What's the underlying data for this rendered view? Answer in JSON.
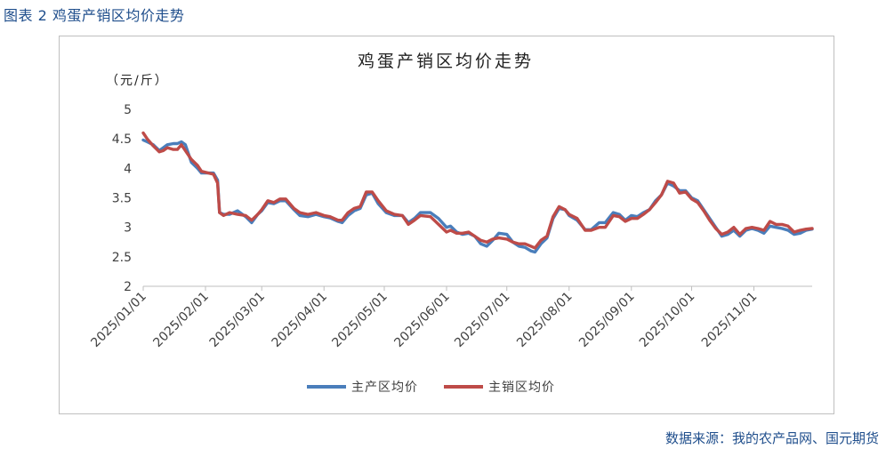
{
  "figure_label": "图表 2  鸡蛋产销区均价走势",
  "source_note": "数据来源：我的农产品网、国元期货",
  "colors": {
    "series_main_producing": "#4a7ebb",
    "series_main_selling": "#be4b48",
    "axis": "#bfbfbf",
    "text": "#404040",
    "header": "#1f4e8c"
  },
  "chart_data": {
    "type": "line",
    "title": "鸡蛋产销区均价走势",
    "ylabel": "（元/斤）",
    "xlabel": "",
    "ylim": [
      2,
      5
    ],
    "yticks": [
      {
        "value": 2,
        "label": "2"
      },
      {
        "value": 2.5,
        "label": "2.5"
      },
      {
        "value": 3,
        "label": "3"
      },
      {
        "value": 3.5,
        "label": "3.5"
      },
      {
        "value": 4,
        "label": "4"
      },
      {
        "value": 4.5,
        "label": "4.5"
      },
      {
        "value": 5,
        "label": "5"
      }
    ],
    "xrange": [
      "2025-01-01",
      "2025-11-30"
    ],
    "xticks": [
      "2025/01/01",
      "2025/02/01",
      "2025/03/01",
      "2025/04/01",
      "2025/05/01",
      "2025/06/01",
      "2025/07/01",
      "2025/08/01",
      "2025/09/01",
      "2025/10/01",
      "2025/11/01"
    ],
    "grid": false,
    "legend": "bottom",
    "series": [
      {
        "name": "主产区均价",
        "points": [
          [
            "2025-01-01",
            4.48
          ],
          [
            "2025-01-03",
            4.45
          ],
          [
            "2025-01-06",
            4.4
          ],
          [
            "2025-01-09",
            4.3
          ],
          [
            "2025-01-11",
            4.35
          ],
          [
            "2025-01-13",
            4.4
          ],
          [
            "2025-01-16",
            4.42
          ],
          [
            "2025-01-18",
            4.42
          ],
          [
            "2025-01-20",
            4.45
          ],
          [
            "2025-01-22",
            4.4
          ],
          [
            "2025-01-25",
            4.1
          ],
          [
            "2025-01-28",
            4.0
          ],
          [
            "2025-01-30",
            3.92
          ],
          [
            "2025-02-05",
            3.92
          ],
          [
            "2025-02-07",
            3.8
          ],
          [
            "2025-02-08",
            3.25
          ],
          [
            "2025-02-10",
            3.22
          ],
          [
            "2025-02-13",
            3.22
          ],
          [
            "2025-02-17",
            3.28
          ],
          [
            "2025-02-21",
            3.18
          ],
          [
            "2025-02-24",
            3.08
          ],
          [
            "2025-02-27",
            3.22
          ],
          [
            "2025-03-01",
            3.28
          ],
          [
            "2025-03-04",
            3.42
          ],
          [
            "2025-03-07",
            3.4
          ],
          [
            "2025-03-10",
            3.45
          ],
          [
            "2025-03-13",
            3.45
          ],
          [
            "2025-03-17",
            3.3
          ],
          [
            "2025-03-20",
            3.2
          ],
          [
            "2025-03-24",
            3.18
          ],
          [
            "2025-03-28",
            3.22
          ],
          [
            "2025-04-01",
            3.18
          ],
          [
            "2025-04-04",
            3.16
          ],
          [
            "2025-04-08",
            3.1
          ],
          [
            "2025-04-10",
            3.08
          ],
          [
            "2025-04-13",
            3.2
          ],
          [
            "2025-04-16",
            3.28
          ],
          [
            "2025-04-19",
            3.32
          ],
          [
            "2025-04-22",
            3.55
          ],
          [
            "2025-04-25",
            3.58
          ],
          [
            "2025-04-28",
            3.4
          ],
          [
            "2025-05-02",
            3.25
          ],
          [
            "2025-05-06",
            3.2
          ],
          [
            "2025-05-10",
            3.2
          ],
          [
            "2025-05-13",
            3.08
          ],
          [
            "2025-05-16",
            3.15
          ],
          [
            "2025-05-19",
            3.25
          ],
          [
            "2025-05-24",
            3.25
          ],
          [
            "2025-05-28",
            3.15
          ],
          [
            "2025-06-01",
            3.0
          ],
          [
            "2025-06-03",
            3.02
          ],
          [
            "2025-06-06",
            2.92
          ],
          [
            "2025-06-09",
            2.88
          ],
          [
            "2025-06-12",
            2.9
          ],
          [
            "2025-06-15",
            2.85
          ],
          [
            "2025-06-18",
            2.72
          ],
          [
            "2025-06-21",
            2.68
          ],
          [
            "2025-06-24",
            2.78
          ],
          [
            "2025-06-27",
            2.9
          ],
          [
            "2025-07-01",
            2.88
          ],
          [
            "2025-07-04",
            2.75
          ],
          [
            "2025-07-07",
            2.68
          ],
          [
            "2025-07-10",
            2.66
          ],
          [
            "2025-07-13",
            2.6
          ],
          [
            "2025-07-15",
            2.58
          ],
          [
            "2025-07-18",
            2.72
          ],
          [
            "2025-07-21",
            2.82
          ],
          [
            "2025-07-24",
            3.15
          ],
          [
            "2025-07-27",
            3.32
          ],
          [
            "2025-07-30",
            3.3
          ],
          [
            "2025-08-01",
            3.2
          ],
          [
            "2025-08-05",
            3.12
          ],
          [
            "2025-08-09",
            2.96
          ],
          [
            "2025-08-12",
            2.96
          ],
          [
            "2025-08-16",
            3.08
          ],
          [
            "2025-08-19",
            3.08
          ],
          [
            "2025-08-23",
            3.25
          ],
          [
            "2025-08-26",
            3.22
          ],
          [
            "2025-08-29",
            3.12
          ],
          [
            "2025-09-01",
            3.2
          ],
          [
            "2025-09-04",
            3.18
          ],
          [
            "2025-09-07",
            3.25
          ],
          [
            "2025-09-10",
            3.3
          ],
          [
            "2025-09-13",
            3.45
          ],
          [
            "2025-09-16",
            3.55
          ],
          [
            "2025-09-19",
            3.75
          ],
          [
            "2025-09-22",
            3.7
          ],
          [
            "2025-09-25",
            3.62
          ],
          [
            "2025-09-28",
            3.62
          ],
          [
            "2025-10-01",
            3.5
          ],
          [
            "2025-10-04",
            3.45
          ],
          [
            "2025-10-07",
            3.3
          ],
          [
            "2025-10-10",
            3.15
          ],
          [
            "2025-10-13",
            3.0
          ],
          [
            "2025-10-16",
            2.85
          ],
          [
            "2025-10-19",
            2.88
          ],
          [
            "2025-10-22",
            2.95
          ],
          [
            "2025-10-25",
            2.85
          ],
          [
            "2025-10-28",
            2.95
          ],
          [
            "2025-10-31",
            2.98
          ],
          [
            "2025-11-03",
            2.95
          ],
          [
            "2025-11-06",
            2.9
          ],
          [
            "2025-11-09",
            3.02
          ],
          [
            "2025-11-12",
            3.0
          ],
          [
            "2025-11-15",
            2.98
          ],
          [
            "2025-11-18",
            2.95
          ],
          [
            "2025-11-21",
            2.88
          ],
          [
            "2025-11-24",
            2.9
          ],
          [
            "2025-11-27",
            2.95
          ],
          [
            "2025-11-30",
            2.97
          ]
        ]
      },
      {
        "name": "主销区均价",
        "points": [
          [
            "2025-01-01",
            4.6
          ],
          [
            "2025-01-03",
            4.5
          ],
          [
            "2025-01-06",
            4.38
          ],
          [
            "2025-01-09",
            4.28
          ],
          [
            "2025-01-11",
            4.3
          ],
          [
            "2025-01-13",
            4.35
          ],
          [
            "2025-01-16",
            4.32
          ],
          [
            "2025-01-18",
            4.32
          ],
          [
            "2025-01-20",
            4.4
          ],
          [
            "2025-01-22",
            4.3
          ],
          [
            "2025-01-25",
            4.15
          ],
          [
            "2025-01-28",
            4.05
          ],
          [
            "2025-01-30",
            3.95
          ],
          [
            "2025-02-05",
            3.9
          ],
          [
            "2025-02-07",
            3.75
          ],
          [
            "2025-02-08",
            3.25
          ],
          [
            "2025-02-10",
            3.2
          ],
          [
            "2025-02-13",
            3.25
          ],
          [
            "2025-02-17",
            3.22
          ],
          [
            "2025-02-21",
            3.2
          ],
          [
            "2025-02-24",
            3.12
          ],
          [
            "2025-02-27",
            3.22
          ],
          [
            "2025-03-01",
            3.3
          ],
          [
            "2025-03-04",
            3.45
          ],
          [
            "2025-03-07",
            3.42
          ],
          [
            "2025-03-10",
            3.48
          ],
          [
            "2025-03-13",
            3.48
          ],
          [
            "2025-03-17",
            3.32
          ],
          [
            "2025-03-20",
            3.25
          ],
          [
            "2025-03-24",
            3.22
          ],
          [
            "2025-03-28",
            3.25
          ],
          [
            "2025-04-01",
            3.2
          ],
          [
            "2025-04-04",
            3.18
          ],
          [
            "2025-04-08",
            3.12
          ],
          [
            "2025-04-10",
            3.12
          ],
          [
            "2025-04-13",
            3.25
          ],
          [
            "2025-04-16",
            3.32
          ],
          [
            "2025-04-19",
            3.35
          ],
          [
            "2025-04-22",
            3.6
          ],
          [
            "2025-04-25",
            3.6
          ],
          [
            "2025-04-28",
            3.45
          ],
          [
            "2025-05-02",
            3.28
          ],
          [
            "2025-05-06",
            3.22
          ],
          [
            "2025-05-10",
            3.2
          ],
          [
            "2025-05-13",
            3.05
          ],
          [
            "2025-05-16",
            3.12
          ],
          [
            "2025-05-19",
            3.2
          ],
          [
            "2025-05-24",
            3.18
          ],
          [
            "2025-05-28",
            3.05
          ],
          [
            "2025-06-01",
            2.92
          ],
          [
            "2025-06-03",
            2.95
          ],
          [
            "2025-06-06",
            2.9
          ],
          [
            "2025-06-09",
            2.9
          ],
          [
            "2025-06-12",
            2.92
          ],
          [
            "2025-06-15",
            2.85
          ],
          [
            "2025-06-18",
            2.78
          ],
          [
            "2025-06-21",
            2.75
          ],
          [
            "2025-06-24",
            2.8
          ],
          [
            "2025-06-27",
            2.82
          ],
          [
            "2025-07-01",
            2.8
          ],
          [
            "2025-07-04",
            2.75
          ],
          [
            "2025-07-07",
            2.72
          ],
          [
            "2025-07-10",
            2.72
          ],
          [
            "2025-07-13",
            2.68
          ],
          [
            "2025-07-15",
            2.65
          ],
          [
            "2025-07-18",
            2.78
          ],
          [
            "2025-07-21",
            2.85
          ],
          [
            "2025-07-24",
            3.18
          ],
          [
            "2025-07-27",
            3.35
          ],
          [
            "2025-07-30",
            3.3
          ],
          [
            "2025-08-01",
            3.22
          ],
          [
            "2025-08-05",
            3.15
          ],
          [
            "2025-08-09",
            2.95
          ],
          [
            "2025-08-12",
            2.95
          ],
          [
            "2025-08-16",
            3.0
          ],
          [
            "2025-08-19",
            3.0
          ],
          [
            "2025-08-23",
            3.2
          ],
          [
            "2025-08-26",
            3.18
          ],
          [
            "2025-08-29",
            3.1
          ],
          [
            "2025-09-01",
            3.15
          ],
          [
            "2025-09-04",
            3.15
          ],
          [
            "2025-09-07",
            3.22
          ],
          [
            "2025-09-10",
            3.3
          ],
          [
            "2025-09-13",
            3.42
          ],
          [
            "2025-09-16",
            3.55
          ],
          [
            "2025-09-19",
            3.78
          ],
          [
            "2025-09-22",
            3.75
          ],
          [
            "2025-09-25",
            3.58
          ],
          [
            "2025-09-28",
            3.6
          ],
          [
            "2025-10-01",
            3.48
          ],
          [
            "2025-10-04",
            3.42
          ],
          [
            "2025-10-07",
            3.28
          ],
          [
            "2025-10-10",
            3.12
          ],
          [
            "2025-10-13",
            2.98
          ],
          [
            "2025-10-16",
            2.88
          ],
          [
            "2025-10-19",
            2.92
          ],
          [
            "2025-10-22",
            3.0
          ],
          [
            "2025-10-25",
            2.88
          ],
          [
            "2025-10-28",
            2.98
          ],
          [
            "2025-10-31",
            3.0
          ],
          [
            "2025-11-03",
            2.98
          ],
          [
            "2025-11-06",
            2.95
          ],
          [
            "2025-11-09",
            3.1
          ],
          [
            "2025-11-12",
            3.05
          ],
          [
            "2025-11-15",
            3.05
          ],
          [
            "2025-11-18",
            3.02
          ],
          [
            "2025-11-21",
            2.92
          ],
          [
            "2025-11-24",
            2.95
          ],
          [
            "2025-11-27",
            2.97
          ],
          [
            "2025-11-30",
            2.98
          ]
        ]
      }
    ]
  }
}
